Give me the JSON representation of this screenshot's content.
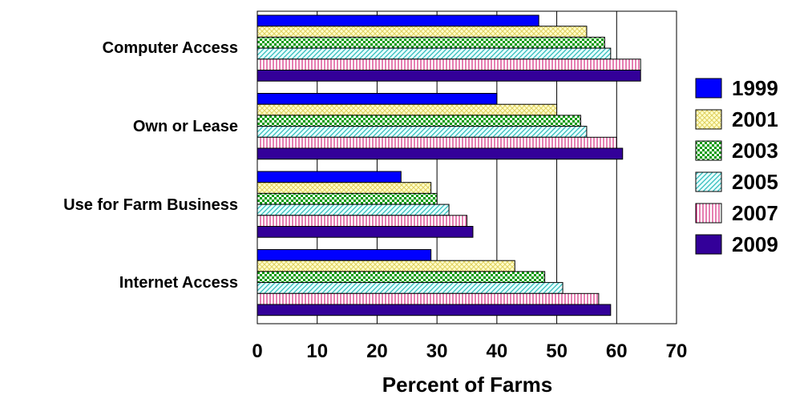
{
  "chart_data": {
    "type": "bar",
    "orientation": "horizontal",
    "title": "",
    "xlabel": "Percent of Farms",
    "ylabel": "",
    "xlim": [
      0,
      70
    ],
    "x_ticks": [
      "0",
      "10",
      "20",
      "30",
      "40",
      "50",
      "60",
      "70"
    ],
    "grid": "vertical",
    "legend_position": "right",
    "categories": [
      "Computer Access",
      "Own or Lease",
      "Use for Farm Business",
      "Internet Access"
    ],
    "series": [
      {
        "name": "1999",
        "color": "#0000ff",
        "pattern": "solid",
        "values": [
          47,
          40,
          24,
          29
        ]
      },
      {
        "name": "2001",
        "color": "#ffff99",
        "pattern": "crosshatch",
        "values": [
          55,
          50,
          29,
          43
        ]
      },
      {
        "name": "2003",
        "color": "#00aa00",
        "pattern": "checker",
        "values": [
          58,
          54,
          30,
          48
        ]
      },
      {
        "name": "2005",
        "color": "#33cccc",
        "pattern": "diagonal",
        "values": [
          59,
          55,
          32,
          51
        ]
      },
      {
        "name": "2007",
        "color": "#cc0066",
        "pattern": "vertical-lines",
        "values": [
          64,
          60,
          35,
          57
        ]
      },
      {
        "name": "2009",
        "color": "#330099",
        "pattern": "solid",
        "values": [
          64,
          61,
          36,
          59
        ]
      }
    ]
  }
}
